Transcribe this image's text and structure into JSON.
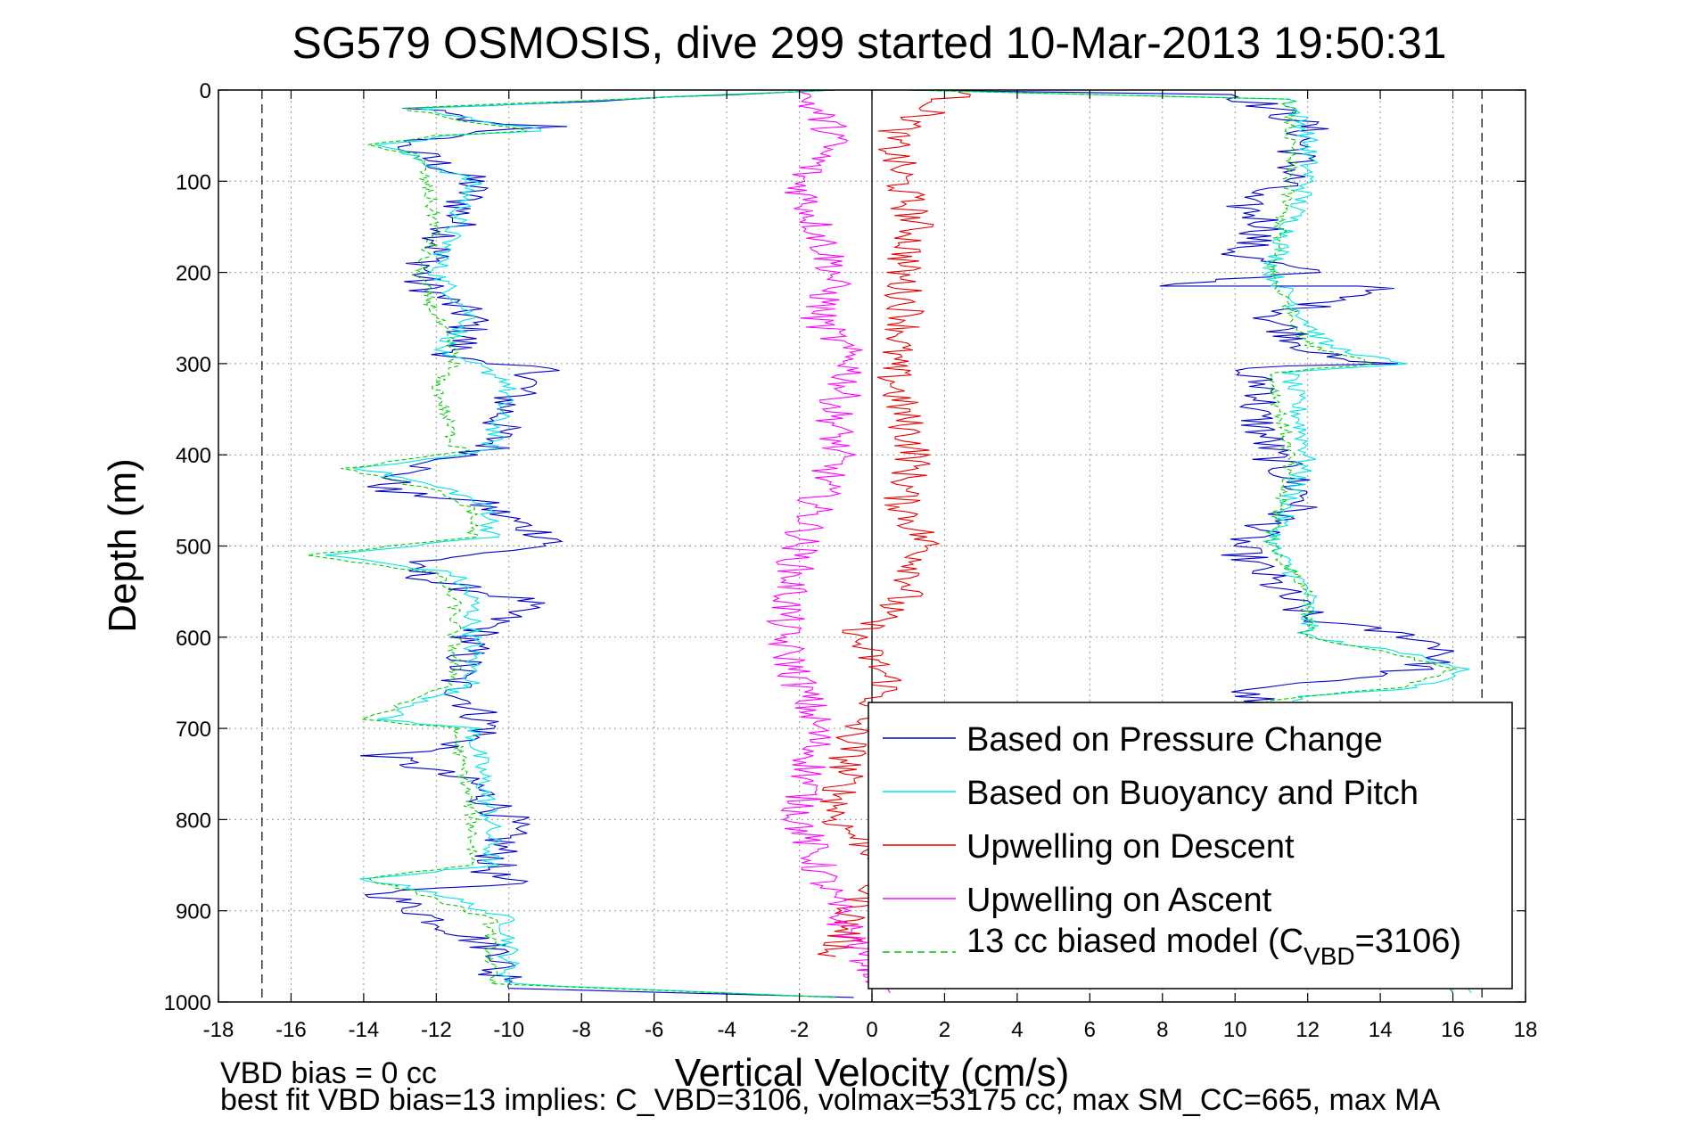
{
  "chart_data": {
    "type": "line",
    "title": "SG579 OSMOSIS, dive 299 started 10-Mar-2013 19:50:31",
    "xlabel": "Vertical Velocity (cm/s)",
    "ylabel": "Depth (m)",
    "xlim": [
      -18,
      18
    ],
    "ylim": [
      0,
      1000
    ],
    "y_reversed": true,
    "grid": true,
    "x_ticks": [
      "-18",
      "-16",
      "-14",
      "-12",
      "-10",
      "-8",
      "-6",
      "-4",
      "-2",
      "0",
      "2",
      "4",
      "6",
      "8",
      "10",
      "12",
      "14",
      "16",
      "18"
    ],
    "y_ticks": [
      "0",
      "100",
      "200",
      "300",
      "400",
      "500",
      "600",
      "700",
      "800",
      "900",
      "1000"
    ],
    "legend_position": "bottom-right",
    "vertical_reference_lines": [
      -16.8,
      0,
      16.8
    ],
    "series": [
      {
        "name": "Based on Pressure Change",
        "color": "#0000cc",
        "style": "solid",
        "branches": [
          {
            "x": [
              -1,
              -12.5,
              -11,
              -8.5,
              -11.5,
              -13,
              -11,
              -11.5,
              -12,
              -12.5,
              -11,
              -11.5,
              -11,
              -9,
              -10,
              -10.5,
              -13,
              -13.5,
              -11,
              -10,
              -9.5,
              -8.5,
              -10,
              -13,
              -12,
              -9.5,
              -11,
              -11.5,
              -10.5,
              -11.5,
              -13.5,
              -11,
              -10,
              -10.5,
              -10,
              -13.5,
              -12.5,
              -10,
              -10.5,
              -9.5,
              -10,
              -0.5
            ],
            "y": [
              0,
              20,
              35,
              40,
              48,
              60,
              100,
              150,
              175,
              210,
              250,
              290,
              300,
              305,
              340,
              395,
              420,
              440,
              450,
              470,
              480,
              495,
              505,
              520,
              540,
              560,
              600,
              650,
              700,
              720,
              730,
              760,
              800,
              860,
              870,
              880,
              900,
              950,
              970,
              975,
              985,
              995
            ]
          },
          {
            "x": [
              1,
              10,
              11,
              12,
              11.5,
              10,
              11,
              10,
              12,
              8,
              14,
              11,
              12,
              12.5,
              14,
              10,
              11,
              10.5,
              11,
              12,
              10,
              11,
              12,
              15,
              16,
              15,
              12,
              10,
              10.5,
              16
            ],
            "y": [
              0,
              5,
              20,
              40,
              100,
              120,
              150,
              180,
              200,
              215,
              215,
              250,
              280,
              295,
              300,
              305,
              330,
              350,
              400,
              450,
              500,
              540,
              580,
              600,
              615,
              635,
              650,
              660,
              665,
              990
            ]
          }
        ]
      },
      {
        "name": "Based on Buoyancy and Pitch",
        "color": "#00e5e5",
        "style": "solid",
        "branches": [
          {
            "x": [
              -1,
              -12.5,
              -10.5,
              -9,
              -11.5,
              -13.5,
              -11,
              -11.5,
              -12,
              -11,
              -12,
              -11,
              -10,
              -10.5,
              -10.5,
              -14,
              -11.5,
              -10.5,
              -10.5,
              -15,
              -11.5,
              -11,
              -11,
              -13.5,
              -11,
              -10.5,
              -10.5,
              -14,
              -12,
              -10,
              -10,
              -1
            ],
            "y": [
              0,
              20,
              35,
              45,
              50,
              60,
              100,
              150,
              200,
              250,
              290,
              300,
              320,
              390,
              395,
              415,
              440,
              460,
              490,
              510,
              530,
              560,
              650,
              690,
              700,
              800,
              850,
              865,
              880,
              910,
              980,
              995
            ]
          },
          {
            "x": [
              1,
              11.5,
              12,
              12,
              11,
              12.5,
              14.5,
              11.5,
              12,
              11,
              12,
              12,
              15,
              16.5,
              15,
              12,
              11.5,
              11.5,
              16.5
            ],
            "y": [
              0,
              10,
              50,
              100,
              200,
              280,
              300,
              310,
              400,
              500,
              550,
              600,
              620,
              635,
              655,
              665,
              670,
              700,
              990
            ]
          }
        ]
      },
      {
        "name": "Upwelling on Descent",
        "color": "#e60000",
        "style": "solid",
        "branches": [
          {
            "x": [
              2.5,
              0.5,
              0.8,
              1.2,
              0.8,
              1,
              0.5,
              0.8,
              1.2,
              0.8,
              1.5,
              1,
              -0.5,
              0.5,
              -0.5,
              -1,
              0.5,
              -0.5,
              -1
            ],
            "y": [
              0,
              50,
              100,
              150,
              200,
              250,
              300,
              350,
              400,
              450,
              500,
              550,
              600,
              650,
              700,
              800,
              850,
              900,
              950
            ]
          }
        ]
      },
      {
        "name": "Upwelling on Ascent",
        "color": "#ff00ff",
        "style": "solid",
        "branches": [
          {
            "x": [
              -2,
              -1,
              -2,
              -1.5,
              -1,
              -1.5,
              -0.5,
              -1,
              -1,
              -1.5,
              -2,
              -2.5,
              -2,
              -1.5,
              -2,
              -1,
              0.5
            ],
            "y": [
              0,
              50,
              100,
              150,
              200,
              250,
              300,
              350,
              400,
              450,
              500,
              600,
              650,
              700,
              800,
              900,
              990
            ]
          }
        ]
      },
      {
        "name": "13 cc biased model (C_VBD=3106)",
        "color": "#00cc00",
        "style": "dashed",
        "branches": [
          {
            "x": [
              -1,
              -13,
              -11,
              -9.5,
              -12,
              -14,
              -12.5,
              -12,
              -12.5,
              -12,
              -11.5,
              -11.5,
              -12,
              -11.5,
              -11,
              -14.5,
              -12,
              -11,
              -11,
              -15.5,
              -12,
              -11.5,
              -11.5,
              -14,
              -11.5,
              -11,
              -11,
              -14,
              -12.5,
              -10.5,
              -10.5,
              -1
            ],
            "y": [
              0,
              20,
              35,
              45,
              50,
              60,
              70,
              150,
              200,
              250,
              290,
              300,
              320,
              390,
              395,
              415,
              440,
              460,
              490,
              510,
              530,
              560,
              650,
              690,
              700,
              800,
              850,
              865,
              880,
              910,
              980,
              995
            ]
          },
          {
            "x": [
              1,
              11.5,
              11.5,
              11.5,
              11,
              12,
              14,
              11,
              11.5,
              11,
              12,
              12,
              14.5,
              16,
              14.5,
              12,
              11,
              11,
              16
            ],
            "y": [
              0,
              10,
              50,
              100,
              200,
              280,
              300,
              310,
              400,
              500,
              550,
              600,
              620,
              635,
              655,
              665,
              670,
              700,
              990
            ]
          }
        ]
      }
    ],
    "annotations": [
      "VBD bias = 0 cc",
      "best fit VBD bias=13 implies: C_VBD=3106, volmax=53175 cc, max SM_CC=665, max MA"
    ]
  },
  "legend": {
    "items": [
      {
        "label": "Based on Pressure Change",
        "color": "#0000cc",
        "dashed": false
      },
      {
        "label": "Based on Buoyancy and Pitch",
        "color": "#00e5e5",
        "dashed": false
      },
      {
        "label": "Upwelling on Descent",
        "color": "#e60000",
        "dashed": false
      },
      {
        "label": "Upwelling on Ascent",
        "color": "#ff00ff",
        "dashed": false
      },
      {
        "label_main": "13 cc biased model (C",
        "label_sub": "VBD",
        "label_tail": "=3106)",
        "color": "#00cc00",
        "dashed": true
      }
    ]
  }
}
